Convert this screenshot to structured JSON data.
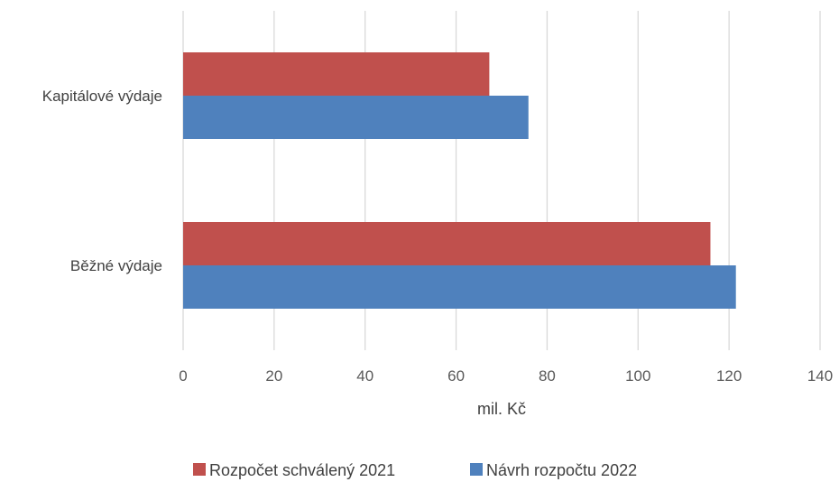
{
  "chart_data": {
    "type": "bar",
    "orientation": "horizontal",
    "categories": [
      "Kapitálové výdaje",
      "Běžné výdaje"
    ],
    "series": [
      {
        "name": "Rozpočet schválený 2021",
        "color": "#c0504d",
        "values": [
          67.3,
          115.9
        ]
      },
      {
        "name": "Návrh rozpočtu 2022",
        "color": "#4f81bd",
        "values": [
          75.9,
          121.5
        ]
      }
    ],
    "xlabel": "mil. Kč",
    "xlim": [
      0,
      140
    ],
    "xticks": [
      0,
      20,
      40,
      60,
      80,
      100,
      120,
      140
    ],
    "grid": true,
    "legend_position": "bottom"
  }
}
